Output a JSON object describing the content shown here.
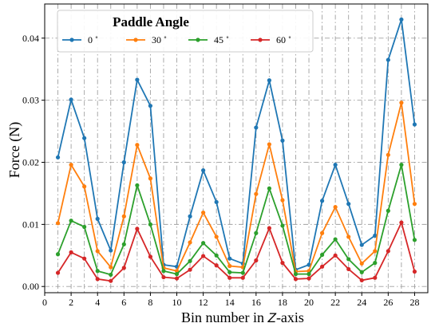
{
  "chart_data": {
    "type": "line",
    "title": "",
    "xlabel": "Bin number in",
    "xlabel_italic": "Z",
    "xlabel_suffix": "-axis",
    "ylabel": "Force (N)",
    "xlim": [
      0,
      29
    ],
    "ylim": [
      -0.001,
      0.0455
    ],
    "xticks": [
      0,
      2,
      4,
      6,
      8,
      10,
      12,
      14,
      16,
      18,
      20,
      22,
      24,
      26,
      28
    ],
    "yticks": [
      0.0,
      0.01,
      0.02,
      0.03,
      0.04
    ],
    "ytick_labels": [
      "0.00",
      "0.01",
      "0.02",
      "0.03",
      "0.04"
    ],
    "grid": true,
    "grid_style": "dashdot",
    "legend": {
      "title": "Paddle Angle",
      "placement": "top-left",
      "columns": 4
    },
    "x": [
      1,
      2,
      3,
      4,
      5,
      6,
      7,
      8,
      9,
      10,
      11,
      12,
      13,
      14,
      15,
      16,
      17,
      18,
      19,
      20,
      21,
      22,
      23,
      24,
      25,
      26,
      27,
      28
    ],
    "series": [
      {
        "name": "0 ˚",
        "color": "#1f77b4",
        "values": [
          0.0208,
          0.0301,
          0.0239,
          0.0109,
          0.0058,
          0.02,
          0.0333,
          0.0291,
          0.0035,
          0.0032,
          0.0113,
          0.0187,
          0.0136,
          0.0045,
          0.0037,
          0.0256,
          0.0332,
          0.0235,
          0.0027,
          0.0035,
          0.0138,
          0.0196,
          0.0133,
          0.0067,
          0.0082,
          0.0365,
          0.043,
          0.0261
        ]
      },
      {
        "name": "30 ˚",
        "color": "#ff7f0e",
        "values": [
          0.0102,
          0.0196,
          0.0161,
          0.0057,
          0.0031,
          0.0113,
          0.0228,
          0.0174,
          0.003,
          0.0025,
          0.0071,
          0.0119,
          0.008,
          0.0033,
          0.0031,
          0.0149,
          0.0229,
          0.0139,
          0.0024,
          0.0025,
          0.0086,
          0.0128,
          0.008,
          0.0037,
          0.0057,
          0.0212,
          0.0296,
          0.0133
        ]
      },
      {
        "name": "45 ˚",
        "color": "#2ca02c",
        "values": [
          0.0052,
          0.0106,
          0.0096,
          0.0025,
          0.0019,
          0.0068,
          0.0163,
          0.01,
          0.0025,
          0.002,
          0.0041,
          0.007,
          0.005,
          0.0023,
          0.0022,
          0.0086,
          0.0158,
          0.0098,
          0.002,
          0.002,
          0.0051,
          0.0076,
          0.0044,
          0.0023,
          0.0038,
          0.0122,
          0.0196,
          0.0075
        ]
      },
      {
        "name": "60 ˚",
        "color": "#d62728",
        "values": [
          0.0022,
          0.0055,
          0.0045,
          0.0012,
          0.0009,
          0.003,
          0.0093,
          0.0048,
          0.0015,
          0.0013,
          0.0027,
          0.0049,
          0.0034,
          0.0014,
          0.0014,
          0.0042,
          0.0094,
          0.0038,
          0.0012,
          0.0013,
          0.0032,
          0.005,
          0.0028,
          0.001,
          0.0014,
          0.0057,
          0.0103,
          0.0024
        ]
      }
    ]
  }
}
